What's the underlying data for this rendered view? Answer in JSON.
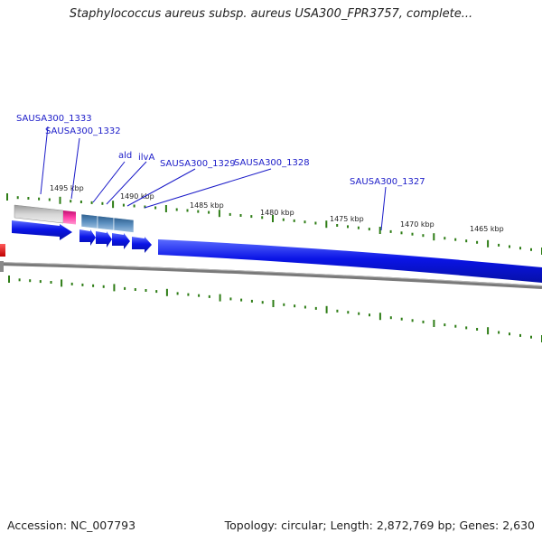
{
  "header": {
    "title": "Staphylococcus aureus subsp. aureus USA300_FPR3757, complete..."
  },
  "footer": {
    "accession": "Accession: NC_007793",
    "stats": "Topology: circular; Length: 2,872,769 bp; Genes: 2,630"
  },
  "map": {
    "scale_labels": [
      "1495 kbp",
      "1490 kbp",
      "1485 kbp",
      "1480 kbp",
      "1475 kbp",
      "1470 kbp",
      "1465 kbp"
    ],
    "gene_labels": [
      "SAUSA300_1333",
      "SAUSA300_1332",
      "ald",
      "ilvA",
      "SAUSA300_1329",
      "SAUSA300_1328",
      "SAUSA300_1327"
    ]
  },
  "colors": {
    "background": "#ffffff",
    "gene_forward": "#0a14e6",
    "gene_rna_pink": "#f0409a",
    "gene_gray": "#c2c2c2",
    "gene_steelblue": "#4a7fb0",
    "gene_reverse_red": "#e60a0a",
    "backbone": "#7a7a7a",
    "tick": "#2e7d16",
    "label": "#1a1ac8",
    "text": "#222222"
  }
}
